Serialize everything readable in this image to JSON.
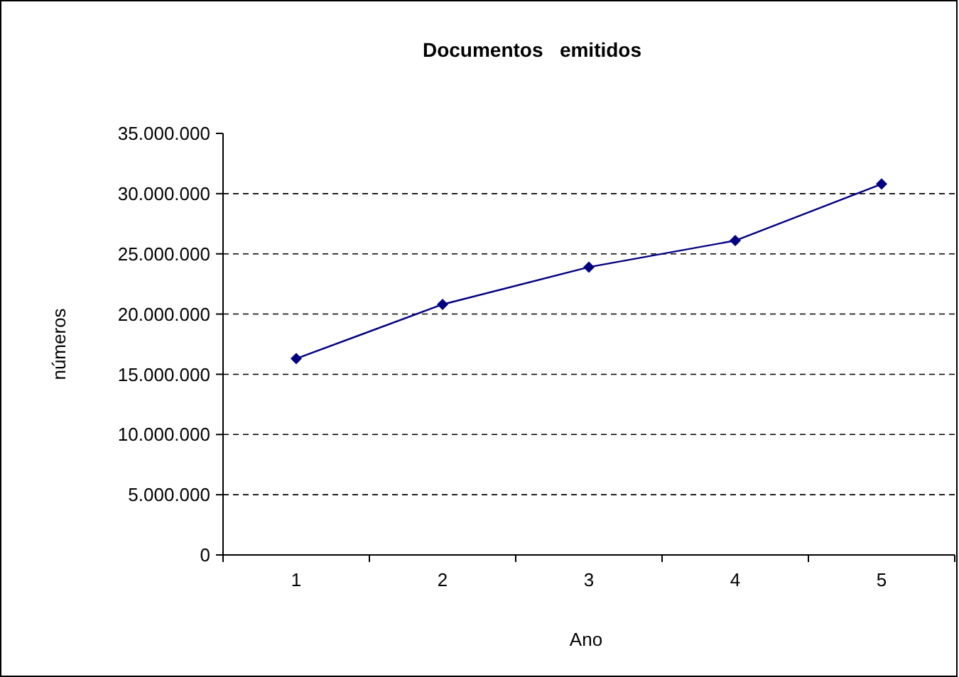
{
  "chart_data": {
    "type": "line",
    "title": "Documentos   emitidos",
    "xlabel": "Ano",
    "ylabel": "números",
    "categories": [
      "1",
      "2",
      "3",
      "4",
      "5"
    ],
    "series": [
      {
        "color": "#000080",
        "values": [
          16300000,
          20800000,
          23900000,
          26100000,
          30800000
        ]
      }
    ],
    "ylim": [
      0,
      35000000
    ],
    "yticks": [
      0,
      {
        "value": 5000000,
        "label": "5.000.000"
      },
      {
        "value": 10000000,
        "label": "10.000.000"
      },
      {
        "value": 15000000,
        "label": "15.000.000"
      },
      {
        "value": 20000000,
        "label": "20.000.000"
      },
      {
        "value": 25000000,
        "label": "25.000.000"
      },
      {
        "value": 30000000,
        "label": "30.000.000"
      },
      {
        "value": 35000000,
        "label": "35.000.000"
      }
    ],
    "grid": "y",
    "marker": "diamond",
    "line_style": "solid"
  }
}
